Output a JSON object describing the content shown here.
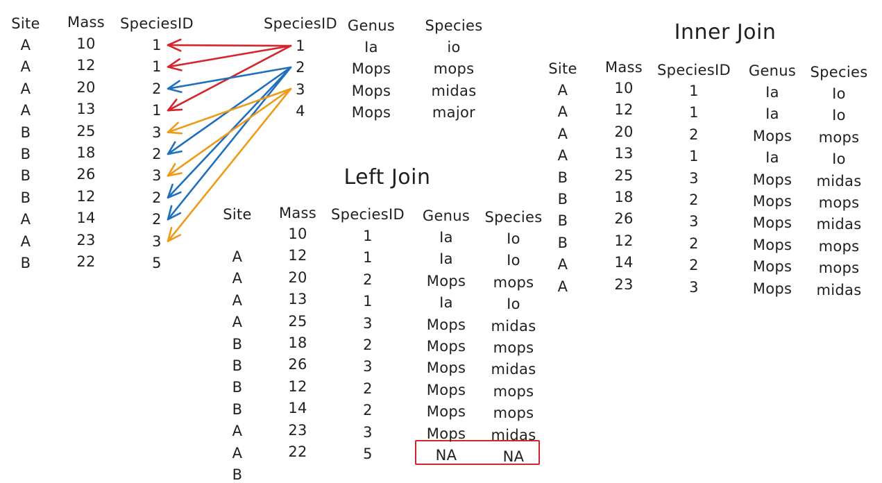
{
  "colors": {
    "red": "#d5252c",
    "blue": "#1e6fbd",
    "orange": "#ef9a17",
    "na_box": "#d5252c"
  },
  "left_table": {
    "headers": {
      "site": "Site",
      "mass": "Mass",
      "species_id": "SpeciesID"
    },
    "site": [
      "A",
      "A",
      "A",
      "A",
      "B",
      "B",
      "B",
      "B",
      "A",
      "A",
      "B"
    ],
    "mass": [
      "10",
      "12",
      "20",
      "13",
      "25",
      "18",
      "26",
      "12",
      "14",
      "23",
      "22"
    ],
    "species_id": [
      "1",
      "1",
      "2",
      "1",
      "3",
      "2",
      "3",
      "2",
      "2",
      "3",
      "5"
    ]
  },
  "right_table": {
    "headers": {
      "species_id": "SpeciesID",
      "genus": "Genus",
      "species": "Species"
    },
    "species_id": [
      "1",
      "2",
      "3",
      "4"
    ],
    "genus": [
      "Ia",
      "Mops",
      "Mops",
      "Mops"
    ],
    "species": [
      "io",
      "mops",
      "midas",
      "major"
    ]
  },
  "left_join": {
    "title": "Left Join",
    "headers": {
      "site": "Site",
      "mass": "Mass",
      "species_id": "SpeciesID",
      "genus": "Genus",
      "species": "Species"
    },
    "site": [
      "A",
      "A",
      "A",
      "A",
      "B",
      "B",
      "B",
      "B",
      "A",
      "A",
      "B"
    ],
    "mass": [
      "10",
      "12",
      "20",
      "13",
      "25",
      "18",
      "26",
      "12",
      "14",
      "23",
      "22"
    ],
    "species_id": [
      "1",
      "1",
      "2",
      "1",
      "3",
      "2",
      "3",
      "2",
      "2",
      "3",
      "5"
    ],
    "genus": [
      "Ia",
      "Ia",
      "Mops",
      "Ia",
      "Mops",
      "Mops",
      "Mops",
      "Mops",
      "Mops",
      "Mops",
      "NA"
    ],
    "species": [
      "Io",
      "Io",
      "mops",
      "Io",
      "midas",
      "mops",
      "midas",
      "mops",
      "mops",
      "midas",
      "NA"
    ]
  },
  "inner_join": {
    "title": "Inner Join",
    "headers": {
      "site": "Site",
      "mass": "Mass",
      "species_id": "SpeciesID",
      "genus": "Genus",
      "species": "Species"
    },
    "site": [
      "A",
      "A",
      "A",
      "A",
      "B",
      "B",
      "B",
      "B",
      "A",
      "A"
    ],
    "mass": [
      "10",
      "12",
      "20",
      "13",
      "25",
      "18",
      "26",
      "12",
      "14",
      "23"
    ],
    "species_id": [
      "1",
      "1",
      "2",
      "1",
      "3",
      "2",
      "3",
      "2",
      "2",
      "3"
    ],
    "genus": [
      "Ia",
      "Ia",
      "Mops",
      "Ia",
      "Mops",
      "Mops",
      "Mops",
      "Mops",
      "Mops",
      "Mops"
    ],
    "species": [
      "Io",
      "Io",
      "mops",
      "Io",
      "midas",
      "mops",
      "midas",
      "mops",
      "mops",
      "midas"
    ]
  },
  "arrow_links": [
    {
      "from_id": "1",
      "to_row": 0,
      "color": "red"
    },
    {
      "from_id": "1",
      "to_row": 1,
      "color": "red"
    },
    {
      "from_id": "1",
      "to_row": 3,
      "color": "red"
    },
    {
      "from_id": "2",
      "to_row": 2,
      "color": "blue"
    },
    {
      "from_id": "2",
      "to_row": 5,
      "color": "blue"
    },
    {
      "from_id": "2",
      "to_row": 7,
      "color": "blue"
    },
    {
      "from_id": "2",
      "to_row": 8,
      "color": "blue"
    },
    {
      "from_id": "3",
      "to_row": 4,
      "color": "orange"
    },
    {
      "from_id": "3",
      "to_row": 6,
      "color": "orange"
    },
    {
      "from_id": "3",
      "to_row": 9,
      "color": "orange"
    }
  ]
}
